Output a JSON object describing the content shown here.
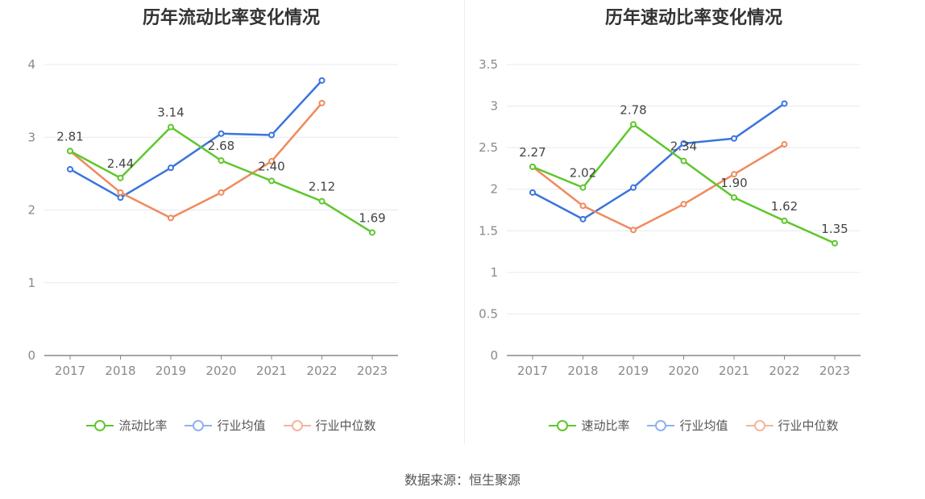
{
  "chart_data": [
    {
      "type": "line",
      "title": "历年流动比率变化情况",
      "categories": [
        "2017",
        "2018",
        "2019",
        "2020",
        "2021",
        "2022",
        "2023"
      ],
      "ylim": [
        0,
        4
      ],
      "yticks": [
        "0",
        "1",
        "2",
        "3",
        "4"
      ],
      "grid": true,
      "legend_position": "bottom",
      "series": [
        {
          "name": "流动比率",
          "color": "#5ec72c",
          "values": [
            2.81,
            2.44,
            3.14,
            2.68,
            2.4,
            2.12,
            1.69
          ],
          "labels": [
            "2.81",
            "2.44",
            "3.14",
            "2.68",
            "2.40",
            "2.12",
            "1.69"
          ]
        },
        {
          "name": "行业均值",
          "color": "#3a74de",
          "values": [
            2.56,
            2.17,
            2.58,
            3.05,
            3.03,
            3.78,
            null
          ]
        },
        {
          "name": "行业中位数",
          "color": "#f08a5d",
          "values": [
            2.81,
            2.24,
            1.89,
            2.24,
            2.67,
            3.47,
            null
          ]
        }
      ]
    },
    {
      "type": "line",
      "title": "历年速动比率变化情况",
      "categories": [
        "2017",
        "2018",
        "2019",
        "2020",
        "2021",
        "2022",
        "2023"
      ],
      "ylim": [
        0,
        3.5
      ],
      "yticks": [
        "0",
        "0.5",
        "1",
        "1.5",
        "2",
        "2.5",
        "3",
        "3.5"
      ],
      "grid": true,
      "legend_position": "bottom",
      "series": [
        {
          "name": "速动比率",
          "color": "#5ec72c",
          "values": [
            2.27,
            2.02,
            2.78,
            2.34,
            1.9,
            1.62,
            1.35
          ],
          "labels": [
            "2.27",
            "2.02",
            "2.78",
            "2.34",
            "1.90",
            "1.62",
            "1.35"
          ]
        },
        {
          "name": "行业均值",
          "color": "#3a74de",
          "values": [
            1.96,
            1.64,
            2.02,
            2.55,
            2.61,
            3.03,
            null
          ]
        },
        {
          "name": "行业中位数",
          "color": "#f08a5d",
          "values": [
            2.27,
            1.8,
            1.51,
            1.82,
            2.18,
            2.54,
            null
          ]
        }
      ]
    }
  ],
  "legend_left": [
    {
      "label": "流动比率",
      "color": "#5ec72c"
    },
    {
      "label": "行业均值",
      "color": "#8fb2ee"
    },
    {
      "label": "行业中位数",
      "color": "#f6b59c"
    }
  ],
  "legend_right": [
    {
      "label": "速动比率",
      "color": "#5ec72c"
    },
    {
      "label": "行业均值",
      "color": "#8fb2ee"
    },
    {
      "label": "行业中位数",
      "color": "#f6b59c"
    }
  ],
  "source": "数据来源：恒生聚源"
}
